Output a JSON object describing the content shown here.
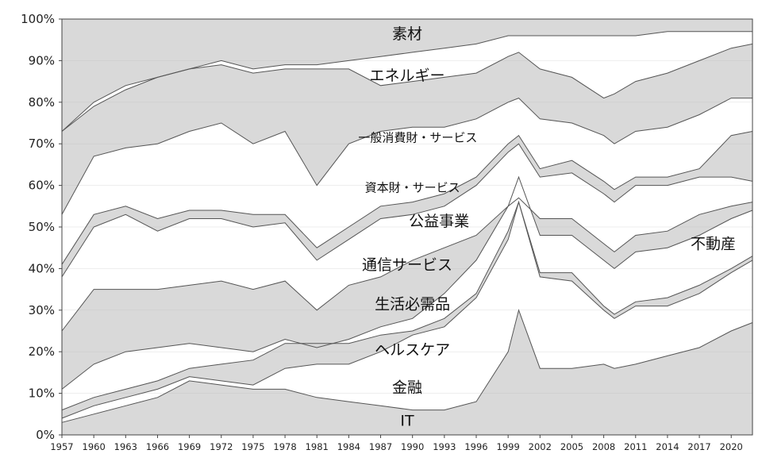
{
  "chart_data": {
    "type": "area",
    "stacked": true,
    "normalized_percent": true,
    "ylim": [
      0,
      100
    ],
    "yticks": [
      "0%",
      "10%",
      "20%",
      "30%",
      "40%",
      "50%",
      "60%",
      "70%",
      "80%",
      "90%",
      "100%"
    ],
    "xlim": [
      1957,
      2022
    ],
    "xticks": [
      "1957",
      "1960",
      "1963",
      "1966",
      "1969",
      "1972",
      "1975",
      "1978",
      "1981",
      "1984",
      "1987",
      "1990",
      "1993",
      "1996",
      "1999",
      "2002",
      "2005",
      "2008",
      "2011",
      "2014",
      "2017",
      "2020"
    ],
    "grid": true,
    "legend": "none",
    "fill_alternating": [
      "#d9d9d9",
      "#ffffff"
    ],
    "line_color": "#555555",
    "x": [
      1957,
      1960,
      1963,
      1966,
      1969,
      1972,
      1975,
      1978,
      1981,
      1984,
      1987,
      1990,
      1993,
      1996,
      1999,
      2000,
      2002,
      2005,
      2008,
      2009,
      2011,
      2014,
      2017,
      2020,
      2022
    ],
    "boundaries": [
      {
        "values": [
          3,
          5,
          7,
          9,
          13,
          12,
          11,
          11,
          9,
          8,
          7,
          6,
          6,
          8,
          20,
          30,
          16,
          16,
          17,
          16,
          17,
          19,
          21,
          25,
          27
        ]
      },
      {
        "values": [
          4,
          7,
          9,
          11,
          14,
          13,
          12,
          16,
          17,
          17,
          20,
          24,
          26,
          33,
          47,
          56,
          38,
          37,
          30,
          28,
          31,
          31,
          34,
          39,
          42
        ]
      },
      {
        "values": [
          6,
          9,
          11,
          13,
          16,
          17,
          18,
          22,
          22,
          22,
          24,
          25,
          28,
          34,
          49,
          56,
          39,
          39,
          31,
          29,
          32,
          33,
          36,
          40,
          43
        ]
      },
      {
        "values": [
          11,
          17,
          20,
          21,
          22,
          21,
          20,
          23,
          21,
          23,
          26,
          28,
          34,
          42,
          55,
          62,
          48,
          48,
          42,
          40,
          44,
          45,
          48,
          52,
          54
        ]
      },
      {
        "values": [
          25,
          35,
          35,
          35,
          36,
          37,
          35,
          37,
          30,
          36,
          38,
          42,
          45,
          48,
          55,
          57,
          52,
          52,
          46,
          44,
          48,
          49,
          53,
          55,
          56
        ]
      },
      {
        "values": [
          38,
          50,
          53,
          49,
          52,
          52,
          50,
          51,
          42,
          47,
          52,
          53,
          55,
          60,
          68,
          70,
          62,
          63,
          58,
          56,
          60,
          60,
          62,
          62,
          61
        ]
      },
      {
        "values": [
          41,
          53,
          55,
          52,
          54,
          54,
          53,
          53,
          45,
          50,
          55,
          56,
          58,
          62,
          70,
          72,
          64,
          66,
          61,
          59,
          62,
          62,
          64,
          72,
          73
        ]
      },
      {
        "values": [
          53,
          67,
          69,
          70,
          73,
          75,
          70,
          73,
          60,
          70,
          73,
          74,
          74,
          76,
          80,
          81,
          76,
          75,
          72,
          70,
          73,
          74,
          77,
          81,
          81
        ]
      },
      {
        "values": [
          73,
          79,
          83,
          86,
          88,
          89,
          87,
          88,
          88,
          88,
          84,
          85,
          86,
          87,
          91,
          92,
          88,
          86,
          81,
          82,
          85,
          87,
          90,
          93,
          94
        ]
      },
      {
        "values": [
          73,
          80,
          84,
          86,
          88,
          90,
          88,
          89,
          89,
          90,
          91,
          92,
          93,
          94,
          96,
          96,
          96,
          96,
          96,
          96,
          96,
          97,
          97,
          97,
          97
        ]
      }
    ],
    "annotations": [
      {
        "text": "素材",
        "x": 1989.5,
        "y": 96.5
      },
      {
        "text": "エネルギー",
        "x": 1989.5,
        "y": 86.5
      },
      {
        "text": "一般消費財・サービス",
        "x": 1990.5,
        "y": 71.5
      },
      {
        "text": "資本財・サービス",
        "x": 1990,
        "y": 59.5
      },
      {
        "text": "公益事業",
        "x": 1992.5,
        "y": 51.5
      },
      {
        "text": "通信サービス",
        "x": 1989.5,
        "y": 41
      },
      {
        "text": "生活必需品",
        "x": 1990,
        "y": 31.5
      },
      {
        "text": "ヘルスケア",
        "x": 1990,
        "y": 20.5
      },
      {
        "text": "金融",
        "x": 1989.5,
        "y": 11.5
      },
      {
        "text": "IT",
        "x": 1989.5,
        "y": 3.5
      },
      {
        "text": "不動産",
        "x": 2018.3,
        "y": 46
      }
    ]
  }
}
